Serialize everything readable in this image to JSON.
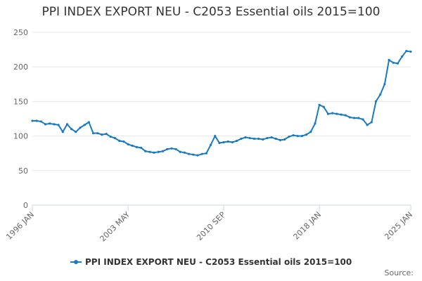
{
  "chart_data": {
    "type": "line",
    "title": "PPI INDEX EXPORT NEU - C2053 Essential oils 2015=100",
    "categories": [
      "1996 JAN",
      null,
      null,
      null,
      null,
      null,
      null,
      null,
      null,
      null,
      null,
      null,
      null,
      null,
      null,
      null,
      null,
      null,
      null,
      null,
      null,
      null,
      "2003 MAY",
      null,
      null,
      null,
      null,
      null,
      null,
      null,
      null,
      null,
      null,
      null,
      null,
      null,
      null,
      null,
      null,
      null,
      null,
      null,
      null,
      null,
      "2010 SEP",
      null,
      null,
      null,
      null,
      null,
      null,
      null,
      null,
      null,
      null,
      null,
      null,
      null,
      null,
      null,
      null,
      null,
      null,
      null,
      null,
      null,
      "2018 JAN",
      null,
      null,
      null,
      null,
      null,
      null,
      null,
      null,
      null,
      null,
      null,
      null,
      null,
      null,
      null,
      null,
      null,
      null,
      null,
      null,
      "2025 JAN"
    ],
    "series": [
      {
        "name": "PPI INDEX EXPORT NEU - C2053 Essential oils 2015=100",
        "color": "#1a7abf",
        "values": [
          122,
          122,
          121,
          117,
          118,
          117,
          116,
          106,
          117,
          110,
          106,
          112,
          116,
          120,
          104,
          104,
          102,
          103,
          99,
          97,
          93,
          92,
          88,
          86,
          84,
          83,
          78,
          77,
          76,
          77,
          78,
          81,
          82,
          81,
          77,
          76,
          74,
          73,
          72,
          74,
          75,
          87,
          100,
          90,
          91,
          92,
          91,
          93,
          96,
          98,
          97,
          96,
          96,
          95,
          97,
          98,
          96,
          94,
          95,
          99,
          101,
          100,
          100,
          102,
          106,
          118,
          145,
          142,
          132,
          133,
          132,
          131,
          130,
          127,
          126,
          126,
          124,
          116,
          120,
          150,
          160,
          175,
          210,
          206,
          205,
          215,
          223,
          222
        ]
      }
    ],
    "ylim": [
      0,
      250
    ],
    "yticks": [
      0,
      50,
      100,
      150,
      200,
      250
    ],
    "grid": true,
    "source": "Source:"
  }
}
